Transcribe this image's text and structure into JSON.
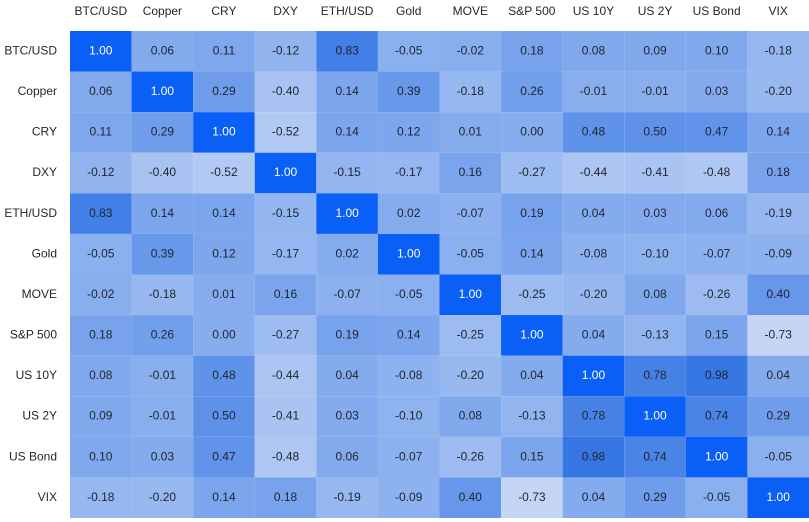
{
  "chart_data": {
    "type": "heatmap",
    "columns": [
      "BTC/USD",
      "Copper",
      "CRY",
      "DXY",
      "ETH/USD",
      "Gold",
      "MOVE",
      "S&P 500",
      "US 10Y",
      "US 2Y",
      "US Bond",
      "VIX"
    ],
    "rows": [
      "BTC/USD",
      "Copper",
      "CRY",
      "DXY",
      "ETH/USD",
      "Gold",
      "MOVE",
      "S&P 500",
      "US 10Y",
      "US 2Y",
      "US Bond",
      "VIX"
    ],
    "values": [
      [
        1.0,
        0.06,
        0.11,
        -0.12,
        0.83,
        -0.05,
        -0.02,
        0.18,
        0.08,
        0.09,
        0.1,
        -0.18
      ],
      [
        0.06,
        1.0,
        0.29,
        -0.4,
        0.14,
        0.39,
        -0.18,
        0.26,
        -0.01,
        -0.01,
        0.03,
        -0.2
      ],
      [
        0.11,
        0.29,
        1.0,
        -0.52,
        0.14,
        0.12,
        0.01,
        0.0,
        0.48,
        0.5,
        0.47,
        0.14
      ],
      [
        -0.12,
        -0.4,
        -0.52,
        1.0,
        -0.15,
        -0.17,
        0.16,
        -0.27,
        -0.44,
        -0.41,
        -0.48,
        0.18
      ],
      [
        0.83,
        0.14,
        0.14,
        -0.15,
        1.0,
        0.02,
        -0.07,
        0.19,
        0.04,
        0.03,
        0.06,
        -0.19
      ],
      [
        -0.05,
        0.39,
        0.12,
        -0.17,
        0.02,
        1.0,
        -0.05,
        0.14,
        -0.08,
        -0.1,
        -0.07,
        -0.09
      ],
      [
        -0.02,
        -0.18,
        0.01,
        0.16,
        -0.07,
        -0.05,
        1.0,
        -0.25,
        -0.2,
        0.08,
        -0.26,
        0.4
      ],
      [
        0.18,
        0.26,
        0.0,
        -0.27,
        0.19,
        0.14,
        -0.25,
        1.0,
        0.04,
        -0.13,
        0.15,
        -0.73
      ],
      [
        0.08,
        -0.01,
        0.48,
        -0.44,
        0.04,
        -0.08,
        -0.2,
        0.04,
        1.0,
        0.78,
        0.98,
        0.04
      ],
      [
        0.09,
        -0.01,
        0.5,
        -0.41,
        0.03,
        -0.1,
        0.08,
        -0.13,
        0.78,
        1.0,
        0.74,
        0.29
      ],
      [
        0.1,
        0.03,
        0.47,
        -0.48,
        0.06,
        -0.07,
        -0.26,
        0.15,
        0.98,
        0.74,
        1.0,
        -0.05
      ],
      [
        -0.18,
        -0.2,
        0.14,
        0.18,
        -0.19,
        -0.09,
        0.4,
        -0.73,
        0.04,
        0.29,
        -0.05,
        1.0
      ]
    ],
    "value_labels": [
      [
        "1.00",
        "0.06",
        "0.11",
        "-0.12",
        "0.83",
        "-0.05",
        "-0.02",
        "0.18",
        "0.08",
        "0.09",
        "0.10",
        "-0.18"
      ],
      [
        "0.06",
        "1.00",
        "0.29",
        "-0.40",
        "0.14",
        "0.39",
        "-0.18",
        "0.26",
        "-0.01",
        "-0.01",
        "0.03",
        "-0.20"
      ],
      [
        "0.11",
        "0.29",
        "1.00",
        "-0.52",
        "0.14",
        "0.12",
        "0.01",
        "0.00",
        "0.48",
        "0.50",
        "0.47",
        "0.14"
      ],
      [
        "-0.12",
        "-0.40",
        "-0.52",
        "1.00",
        "-0.15",
        "-0.17",
        "0.16",
        "-0.27",
        "-0.44",
        "-0.41",
        "-0.48",
        "0.18"
      ],
      [
        "0.83",
        "0.14",
        "0.14",
        "-0.15",
        "1.00",
        "0.02",
        "-0.07",
        "0.19",
        "0.04",
        "0.03",
        "0.06",
        "-0.19"
      ],
      [
        "-0.05",
        "0.39",
        "0.12",
        "-0.17",
        "0.02",
        "1.00",
        "-0.05",
        "0.14",
        "-0.08",
        "-0.10",
        "-0.07",
        "-0.09"
      ],
      [
        "-0.02",
        "-0.18",
        "0.01",
        "0.16",
        "-0.07",
        "-0.05",
        "1.00",
        "-0.25",
        "-0.20",
        "0.08",
        "-0.26",
        "0.40"
      ],
      [
        "0.18",
        "0.26",
        "0.00",
        "-0.27",
        "0.19",
        "0.14",
        "-0.25",
        "1.00",
        "0.04",
        "-0.13",
        "0.15",
        "-0.73"
      ],
      [
        "0.08",
        "-0.01",
        "0.48",
        "-0.44",
        "0.04",
        "-0.08",
        "-0.20",
        "0.04",
        "1.00",
        "0.78",
        "0.98",
        "0.04"
      ],
      [
        "0.09",
        "-0.01",
        "0.50",
        "-0.41",
        "0.03",
        "-0.10",
        "0.08",
        "-0.13",
        "0.78",
        "1.00",
        "0.74",
        "0.29"
      ],
      [
        "0.10",
        "0.03",
        "0.47",
        "-0.48",
        "0.06",
        "-0.07",
        "-0.26",
        "0.15",
        "0.98",
        "0.74",
        "1.00",
        "-0.05"
      ],
      [
        "-0.18",
        "-0.20",
        "0.14",
        "0.18",
        "-0.19",
        "-0.09",
        "0.40",
        "-0.73",
        "0.04",
        "0.29",
        "-0.05",
        "1.00"
      ]
    ]
  }
}
